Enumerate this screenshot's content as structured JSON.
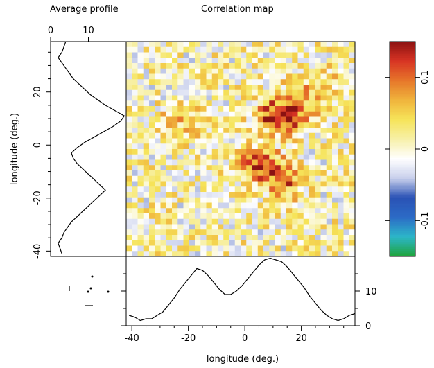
{
  "chart_data": [
    {
      "type": "heatmap",
      "title": "Correlation map",
      "xlabel": "longitude (deg.)",
      "ylabel": "longitude (deg.)",
      "xlim": [
        -42,
        39
      ],
      "ylim": [
        -42,
        39
      ],
      "x_ticks": [
        "-40",
        "-20",
        "0",
        "20"
      ],
      "y_ticks": [
        "-40",
        "-20",
        "0",
        "20"
      ],
      "grid": {
        "nx": 40,
        "ny": 40,
        "seed": 7
      },
      "ridges": [
        {
          "x": 13,
          "y": 11,
          "amp": 0.15,
          "sx": 4,
          "sy": 3
        },
        {
          "x": 6,
          "y": -8,
          "amp": 0.12,
          "sx": 4,
          "sy": 3
        },
        {
          "x": 14,
          "y": -15,
          "amp": 0.08,
          "sx": 3,
          "sy": 3
        },
        {
          "x": -22,
          "y": 8,
          "amp": 0.05,
          "sx": 4,
          "sy": 3
        },
        {
          "x": 25,
          "y": 20,
          "amp": 0.05,
          "sx": 5,
          "sy": 4
        }
      ]
    },
    {
      "type": "line",
      "title": "Average profile",
      "ylabel": "longitude (deg.)",
      "xlim": [
        0,
        20
      ],
      "ylim": [
        -42,
        39
      ],
      "x_ticks": [
        "0",
        "10"
      ],
      "y": [
        -41,
        -39,
        -37,
        -35,
        -33,
        -31,
        -29,
        -27,
        -25,
        -23,
        -21,
        -19,
        -17,
        -15,
        -13,
        -11,
        -9,
        -7,
        -5,
        -3,
        -1,
        1,
        3,
        5,
        7,
        9,
        11,
        13,
        15,
        17,
        19,
        21,
        23,
        25,
        27,
        29,
        31,
        33,
        35,
        37,
        39
      ],
      "x": [
        3,
        2.5,
        2,
        3,
        3.5,
        4.5,
        5.5,
        7,
        8.5,
        10,
        11.5,
        13,
        14.5,
        13,
        11.5,
        10,
        8.5,
        7,
        6,
        5.5,
        7,
        9,
        11.5,
        14,
        16.5,
        18.5,
        19.5,
        17,
        14.5,
        12.5,
        10.5,
        9,
        7.5,
        6,
        5,
        4,
        3,
        2,
        3,
        3.5,
        4
      ]
    },
    {
      "type": "line",
      "xlabel": "longitude (deg.)",
      "xlim": [
        -42,
        39
      ],
      "ylim": [
        0,
        20
      ],
      "y_ticks": [
        "0",
        "10"
      ],
      "x": [
        -41,
        -39,
        -37,
        -35,
        -33,
        -31,
        -29,
        -27,
        -25,
        -23,
        -21,
        -19,
        -17,
        -15,
        -13,
        -11,
        -9,
        -7,
        -5,
        -3,
        -1,
        1,
        3,
        5,
        7,
        9,
        11,
        13,
        15,
        17,
        19,
        21,
        23,
        25,
        27,
        29,
        31,
        33,
        35,
        37,
        39
      ],
      "y": [
        3,
        2.5,
        1.5,
        2,
        2,
        3,
        4,
        6,
        8,
        10.5,
        12.5,
        14.5,
        16.5,
        16,
        14.5,
        12.5,
        10.5,
        9,
        9,
        10,
        11.5,
        13.5,
        15.5,
        17.5,
        19,
        19.5,
        19,
        18.5,
        17,
        15,
        13,
        11,
        8.5,
        6.5,
        4.5,
        3,
        2,
        1.5,
        2,
        3,
        3.5
      ]
    },
    {
      "type": "heatmap",
      "name": "colorbar",
      "ylim": [
        -0.15,
        0.15
      ],
      "y_ticks": [
        "-0.1",
        "0",
        "0.1"
      ],
      "palette": [
        "#1fa43c",
        "#2cb6c9",
        "#2c6bc6",
        "#2a52b5",
        "#c9d0ec",
        "#ffffff",
        "#f7f0a8",
        "#f6e45a",
        "#f0b43c",
        "#e6762a",
        "#d83424",
        "#8b1212"
      ]
    }
  ]
}
